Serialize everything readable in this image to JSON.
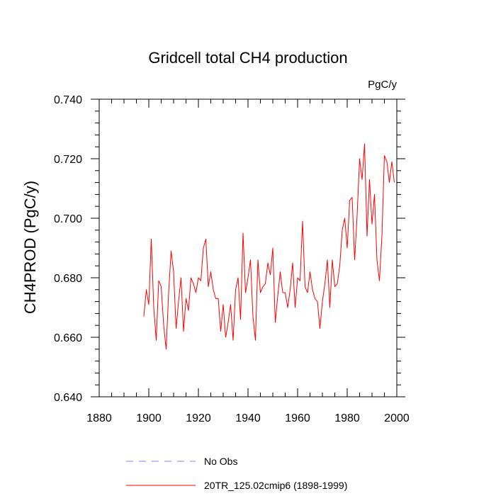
{
  "chart_data": {
    "type": "line",
    "title": "Gridcell total CH4 production",
    "units_label": "PgC/y",
    "ylabel": "CH4PROD  (PgC/y)",
    "xlabel": "",
    "xlim": [
      1880,
      2000
    ],
    "ylim": [
      0.64,
      0.74
    ],
    "x_ticks": [
      1880,
      1900,
      1920,
      1940,
      1960,
      1980,
      2000
    ],
    "x_tick_labels": [
      "1880",
      "1900",
      "1920",
      "1940",
      "1960",
      "1980",
      "2000"
    ],
    "y_ticks": [
      0.64,
      0.66,
      0.68,
      0.7,
      0.72,
      0.74
    ],
    "y_tick_labels": [
      "0.640",
      "0.660",
      "0.680",
      "0.700",
      "0.720",
      "0.740"
    ],
    "grid": false,
    "legend_position": "bottom",
    "legend": [
      {
        "label": "No Obs",
        "color": "#8080ff",
        "dash": "dashed"
      },
      {
        "label": "20TR_125.02cmip6 (1898-1999)",
        "color": "#ff0000",
        "dash": "solid"
      }
    ],
    "series": [
      {
        "name": "20TR_125.02cmip6 (1898-1999)",
        "color": "#ff0000",
        "x": [
          1898,
          1899,
          1900,
          1901,
          1902,
          1903,
          1904,
          1905,
          1906,
          1907,
          1908,
          1909,
          1910,
          1911,
          1912,
          1913,
          1914,
          1915,
          1916,
          1917,
          1918,
          1919,
          1920,
          1921,
          1922,
          1923,
          1924,
          1925,
          1926,
          1927,
          1928,
          1929,
          1930,
          1931,
          1932,
          1933,
          1934,
          1935,
          1936,
          1937,
          1938,
          1939,
          1940,
          1941,
          1942,
          1943,
          1944,
          1945,
          1946,
          1947,
          1948,
          1949,
          1950,
          1951,
          1952,
          1953,
          1954,
          1955,
          1956,
          1957,
          1958,
          1959,
          1960,
          1961,
          1962,
          1963,
          1964,
          1965,
          1966,
          1967,
          1968,
          1969,
          1970,
          1971,
          1972,
          1973,
          1974,
          1975,
          1976,
          1977,
          1978,
          1979,
          1980,
          1981,
          1982,
          1983,
          1984,
          1985,
          1986,
          1987,
          1988,
          1989,
          1990,
          1991,
          1992,
          1993,
          1994,
          1995,
          1996,
          1997,
          1998,
          1999
        ],
        "values": [
          0.667,
          0.676,
          0.671,
          0.693,
          0.67,
          0.659,
          0.679,
          0.677,
          0.664,
          0.656,
          0.675,
          0.689,
          0.682,
          0.663,
          0.672,
          0.68,
          0.662,
          0.673,
          0.669,
          0.68,
          0.678,
          0.675,
          0.68,
          0.679,
          0.69,
          0.693,
          0.677,
          0.682,
          0.676,
          0.673,
          0.673,
          0.662,
          0.671,
          0.66,
          0.665,
          0.671,
          0.659,
          0.676,
          0.68,
          0.666,
          0.695,
          0.675,
          0.68,
          0.686,
          0.667,
          0.659,
          0.686,
          0.675,
          0.677,
          0.678,
          0.685,
          0.681,
          0.69,
          0.665,
          0.674,
          0.682,
          0.675,
          0.675,
          0.67,
          0.676,
          0.685,
          0.67,
          0.68,
          0.679,
          0.699,
          0.677,
          0.675,
          0.682,
          0.676,
          0.673,
          0.672,
          0.663,
          0.672,
          0.678,
          0.686,
          0.67,
          0.686,
          0.677,
          0.678,
          0.684,
          0.696,
          0.7,
          0.69,
          0.706,
          0.707,
          0.686,
          0.701,
          0.72,
          0.713,
          0.725,
          0.694,
          0.713,
          0.698,
          0.708,
          0.686,
          0.679,
          0.694,
          0.721,
          0.719,
          0.712,
          0.719,
          0.712
        ]
      }
    ]
  }
}
